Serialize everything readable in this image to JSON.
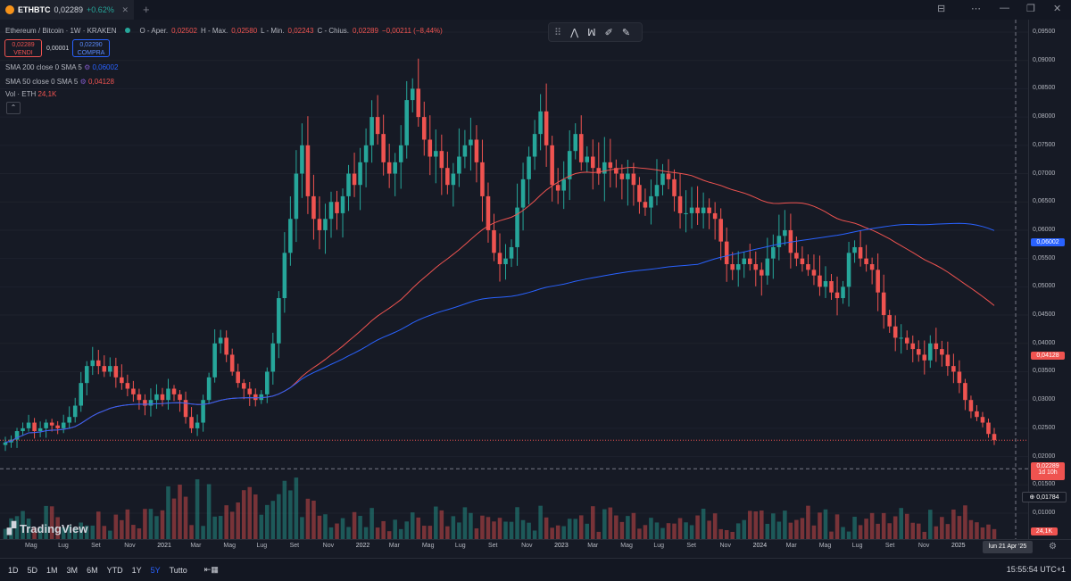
{
  "tab": {
    "symbol": "ETHBTC",
    "price": "0,02289",
    "change": "+0.62%",
    "close": "✕",
    "new": "+"
  },
  "window": {
    "minimize": "—",
    "restore": "❐",
    "close": "✕",
    "layout": "⊟",
    "menu": "⋯"
  },
  "legend": {
    "title": "Ethereum / Bitcoin · 1W · KRAKEN",
    "open_label": "O - Aper.",
    "open": "0,02502",
    "high_label": "H - Max.",
    "high": "0,02580",
    "low_label": "L - Min.",
    "low": "0,02243",
    "close_label": "C - Chius.",
    "close": "0,02289",
    "change": "−0,00211 (−8,44%)"
  },
  "trade": {
    "sell_price": "0,02289",
    "sell_label": "VENDI",
    "spread": "0,00001",
    "buy_price": "0,02290",
    "buy_label": "COMPRA"
  },
  "indicators": [
    {
      "label": "SMA 200 close 0 SMA 5",
      "value": "0,06002",
      "color": "#2962ff"
    },
    {
      "label": "SMA 50 close 0 SMA 5",
      "value": "0,04128",
      "color": "#ef5350"
    },
    {
      "label": "Vol · ETH",
      "value": "24,1K",
      "color": "#ef5350"
    }
  ],
  "collapse": "⌃",
  "toolbar": {
    "icons": [
      "pattern-icon",
      "pattern2-icon",
      "brush-icon",
      "pen-icon"
    ]
  },
  "watermark": "TradingView",
  "price_axis": [
    "0,09500",
    "0,09000",
    "0,08500",
    "0,08000",
    "0,07500",
    "0,07000",
    "0,06500",
    "0,06000",
    "0,05500",
    "0,05000",
    "0,04500",
    "0,04000",
    "0,03500",
    "0,03000",
    "0,02500",
    "0,02000",
    "0,01500",
    "0,01000"
  ],
  "badges": {
    "sma200": "0,06002",
    "sma50": "0,04128",
    "last_price": "0,02289",
    "countdown": "1d 10h",
    "crosshair": "0,01784",
    "volume": "24,1K"
  },
  "time_axis": [
    "Mag",
    "Lug",
    "Set",
    "Nov",
    "2021",
    "Mar",
    "Mag",
    "Lug",
    "Set",
    "Nov",
    "2022",
    "Mar",
    "Mag",
    "Lug",
    "Set",
    "Nov",
    "2023",
    "Mar",
    "Mag",
    "Lug",
    "Set",
    "Nov",
    "2024",
    "Mar",
    "Mag",
    "Lug",
    "Set",
    "Nov",
    "2025"
  ],
  "time_cursor": "lun 21 Apr '25",
  "timeframes": [
    "1D",
    "5D",
    "1M",
    "3M",
    "6M",
    "YTD",
    "1Y",
    "5Y",
    "Tutto"
  ],
  "active_timeframe": "5Y",
  "clock": "15:55:54 UTC+1",
  "colors": {
    "up": "#26a69a",
    "down": "#ef5350",
    "sma200": "#2962ff",
    "sma50": "#ef5350"
  },
  "chart_data": {
    "type": "candlestick",
    "symbol": "ETHBTC",
    "interval": "1W",
    "ylim": [
      0.01,
      0.097
    ],
    "period": [
      "2020-04",
      "2025-04"
    ],
    "closes": [
      0.0225,
      0.023,
      0.0245,
      0.025,
      0.026,
      0.0245,
      0.025,
      0.026,
      0.0255,
      0.025,
      0.026,
      0.027,
      0.029,
      0.033,
      0.036,
      0.037,
      0.036,
      0.035,
      0.036,
      0.034,
      0.033,
      0.032,
      0.031,
      0.03,
      0.029,
      0.03,
      0.031,
      0.03,
      0.032,
      0.031,
      0.03,
      0.027,
      0.025,
      0.026,
      0.03,
      0.034,
      0.04,
      0.041,
      0.038,
      0.035,
      0.033,
      0.032,
      0.031,
      0.03,
      0.031,
      0.035,
      0.04,
      0.048,
      0.056,
      0.062,
      0.07,
      0.075,
      0.066,
      0.062,
      0.06,
      0.062,
      0.065,
      0.063,
      0.066,
      0.07,
      0.068,
      0.072,
      0.075,
      0.08,
      0.077,
      0.072,
      0.07,
      0.072,
      0.075,
      0.083,
      0.085,
      0.08,
      0.076,
      0.073,
      0.074,
      0.071,
      0.068,
      0.07,
      0.073,
      0.075,
      0.076,
      0.072,
      0.066,
      0.06,
      0.056,
      0.054,
      0.055,
      0.057,
      0.064,
      0.069,
      0.073,
      0.077,
      0.081,
      0.075,
      0.068,
      0.067,
      0.069,
      0.074,
      0.077,
      0.072,
      0.073,
      0.071,
      0.07,
      0.072,
      0.071,
      0.07,
      0.069,
      0.07,
      0.068,
      0.065,
      0.064,
      0.066,
      0.068,
      0.07,
      0.069,
      0.066,
      0.063,
      0.063,
      0.064,
      0.063,
      0.064,
      0.063,
      0.062,
      0.058,
      0.054,
      0.053,
      0.054,
      0.055,
      0.054,
      0.053,
      0.052,
      0.055,
      0.057,
      0.059,
      0.06,
      0.056,
      0.055,
      0.054,
      0.053,
      0.052,
      0.05,
      0.051,
      0.049,
      0.048,
      0.05,
      0.056,
      0.057,
      0.055,
      0.054,
      0.053,
      0.049,
      0.045,
      0.043,
      0.041,
      0.041,
      0.04,
      0.039,
      0.038,
      0.037,
      0.04,
      0.039,
      0.038,
      0.036,
      0.035,
      0.033,
      0.03,
      0.028,
      0.027,
      0.026,
      0.024,
      0.0229
    ]
  }
}
